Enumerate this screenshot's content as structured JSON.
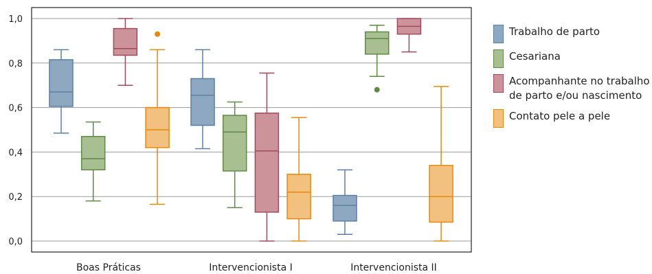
{
  "chart_data": {
    "type": "boxplot",
    "categories": [
      "Boas Práticas",
      "Intervencionista I",
      "Intervencionista II"
    ],
    "ylim": [
      0,
      1.0
    ],
    "yticks": [
      "0,0",
      "0,2",
      "0,4",
      "0,6",
      "0,8",
      "1,0"
    ],
    "ytick_values": [
      0,
      0.2,
      0.4,
      0.6,
      0.8,
      1.0
    ],
    "grid": true,
    "legend_position": "right",
    "series": [
      {
        "name": "Trabalho de parto",
        "color": "#5b7fa3",
        "fill": "#8fa8c2",
        "boxes": [
          {
            "min": 0.485,
            "q1": 0.605,
            "median": 0.67,
            "q3": 0.815,
            "max": 0.86,
            "outliers": []
          },
          {
            "min": 0.415,
            "q1": 0.52,
            "median": 0.655,
            "q3": 0.73,
            "max": 0.86,
            "outliers": []
          },
          {
            "min": 0.03,
            "q1": 0.09,
            "median": 0.16,
            "q3": 0.205,
            "max": 0.32,
            "outliers": []
          }
        ]
      },
      {
        "name": "Cesariana",
        "color": "#5e8a44",
        "fill": "#a8bf92",
        "boxes": [
          {
            "min": 0.18,
            "q1": 0.32,
            "median": 0.37,
            "q3": 0.47,
            "max": 0.535,
            "outliers": []
          },
          {
            "min": 0.15,
            "q1": 0.315,
            "median": 0.49,
            "q3": 0.565,
            "max": 0.625,
            "outliers": []
          },
          {
            "min": 0.74,
            "q1": 0.84,
            "median": 0.91,
            "q3": 0.94,
            "max": 0.97,
            "outliers": [
              0.68
            ]
          }
        ]
      },
      {
        "name": "Acompanhante no trabalho de parto e/ou nascimento",
        "color": "#a34a5a",
        "fill": "#cc939b",
        "boxes": [
          {
            "min": 0.7,
            "q1": 0.835,
            "median": 0.865,
            "q3": 0.955,
            "max": 1.0,
            "outliers": []
          },
          {
            "min": 0.0,
            "q1": 0.13,
            "median": 0.405,
            "q3": 0.575,
            "max": 0.755,
            "outliers": []
          },
          {
            "min": 0.85,
            "q1": 0.93,
            "median": 0.965,
            "q3": 1.0,
            "max": 1.0,
            "outliers": []
          }
        ]
      },
      {
        "name": "Contato pele a pele",
        "color": "#e8890c",
        "fill": "#f2c07f",
        "boxes": [
          {
            "min": 0.165,
            "q1": 0.42,
            "median": 0.5,
            "q3": 0.6,
            "max": 0.86,
            "outliers": [
              0.93
            ]
          },
          {
            "min": 0.0,
            "q1": 0.1,
            "median": 0.22,
            "q3": 0.3,
            "max": 0.555,
            "outliers": []
          },
          {
            "min": 0.0,
            "q1": 0.085,
            "median": 0.2,
            "q3": 0.34,
            "max": 0.695,
            "outliers": []
          }
        ]
      }
    ]
  },
  "legend": {
    "items": [
      {
        "label": "Trabalho de parto",
        "color": "#5b7fa3",
        "fill": "#8fa8c2"
      },
      {
        "label": "Cesariana",
        "color": "#5e8a44",
        "fill": "#a8bf92"
      },
      {
        "label": "Acompanhante no trabalho de parto e/ou nascimento",
        "color": "#a34a5a",
        "fill": "#cc939b"
      },
      {
        "label": "Contato pele a pele",
        "color": "#e8890c",
        "fill": "#f2c07f"
      }
    ]
  }
}
